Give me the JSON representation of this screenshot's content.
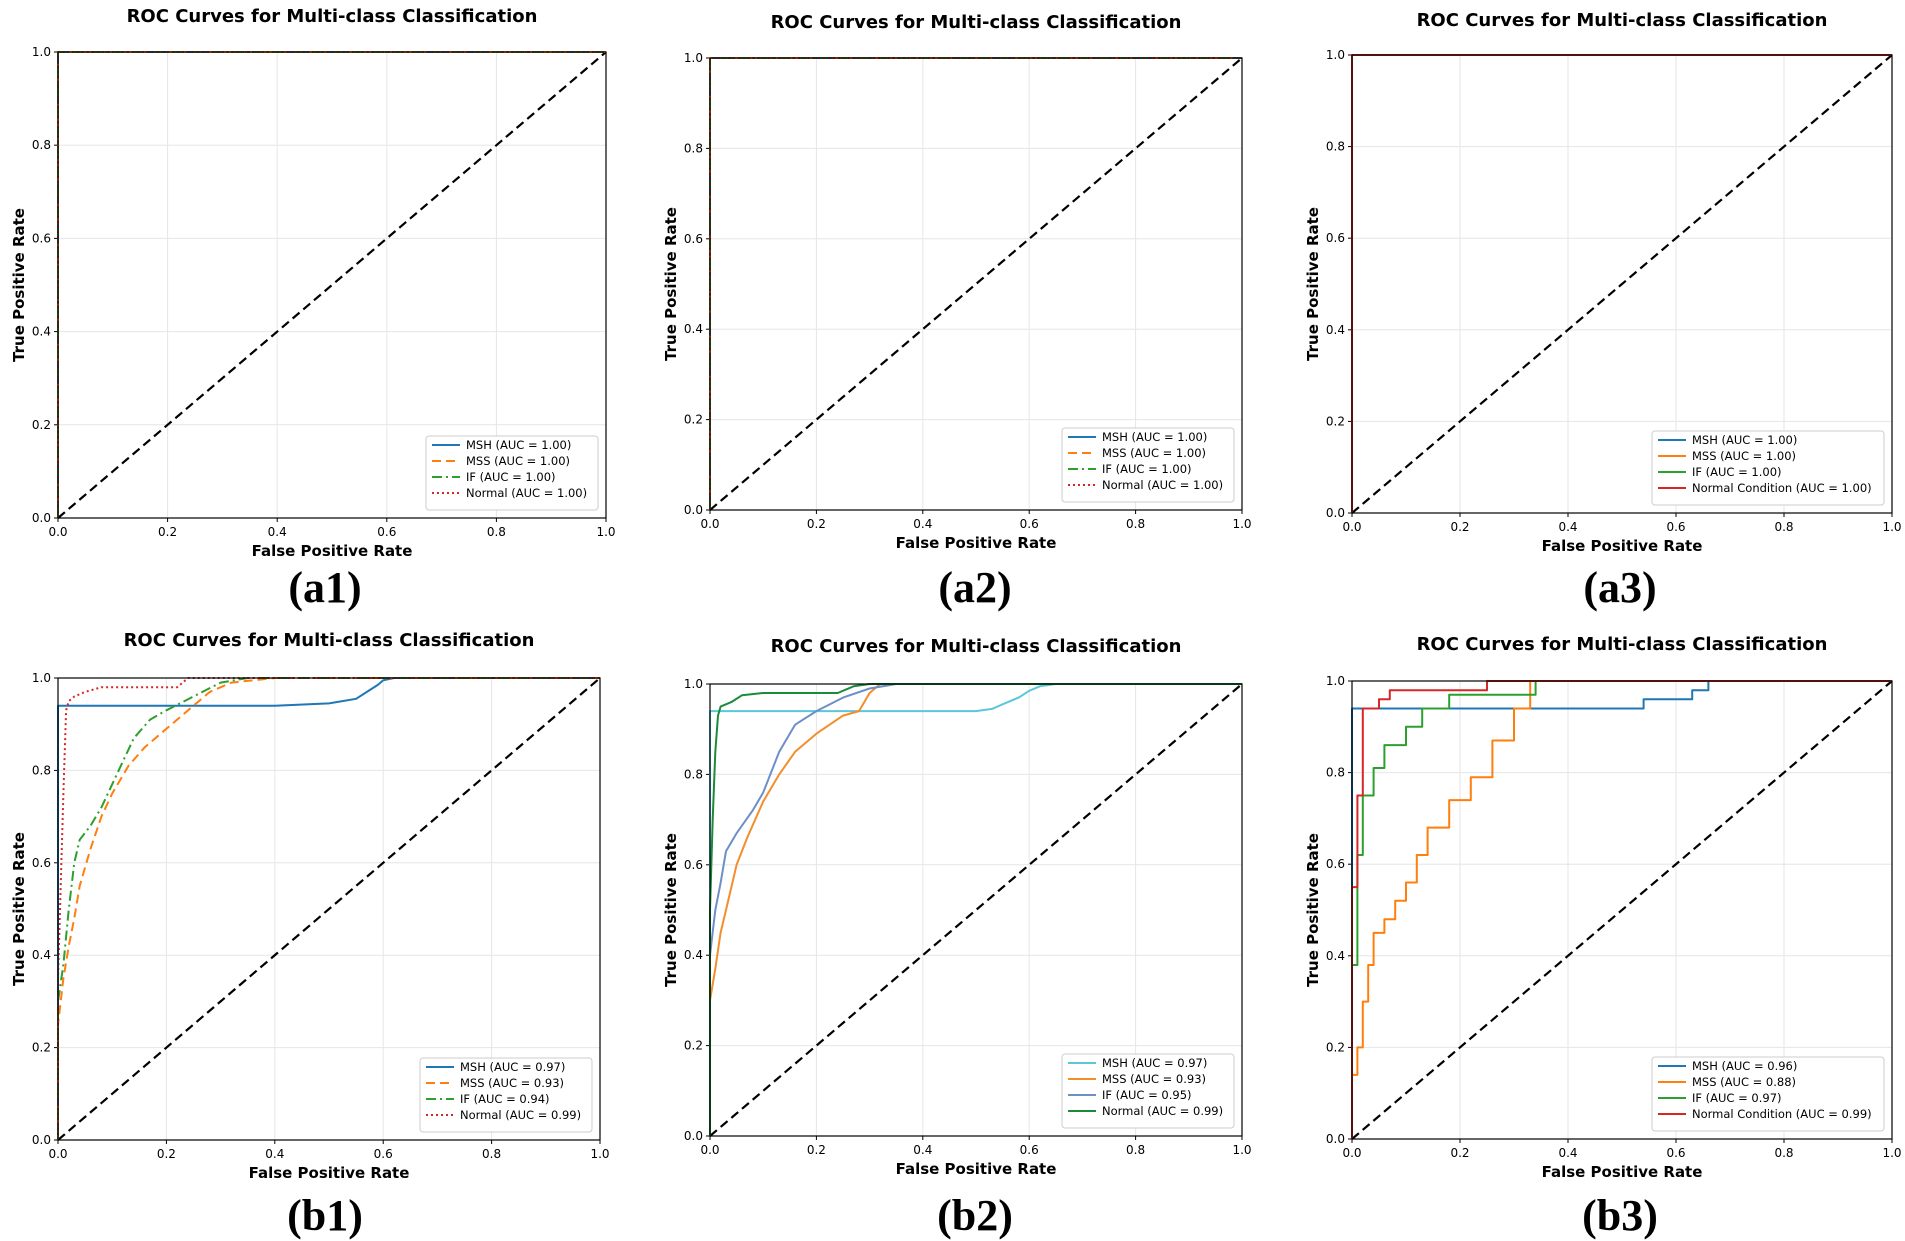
{
  "figure": {
    "panels": [
      {
        "id": "a1",
        "label": "(a1)",
        "title": "ROC Curves for Multi-class Classification",
        "xlabel": "False Positive Rate",
        "ylabel": "True Positive Rate",
        "legend": [
          "MSH (AUC = 1.00)",
          "MSS (AUC = 1.00)",
          "IF (AUC = 1.00)",
          "Normal (AUC = 1.00)"
        ]
      },
      {
        "id": "a2",
        "label": "(a2)",
        "title": "ROC Curves for Multi-class Classification",
        "xlabel": "False Positive Rate",
        "ylabel": "True Positive Rate",
        "legend": [
          "MSH (AUC = 1.00)",
          "MSS (AUC = 1.00)",
          "IF (AUC = 1.00)",
          "Normal (AUC = 1.00)"
        ]
      },
      {
        "id": "a3",
        "label": "(a3)",
        "title": "ROC Curves for Multi-class Classification",
        "xlabel": "False Positive Rate",
        "ylabel": "True Positive Rate",
        "legend": [
          "MSH (AUC = 1.00)",
          "MSS (AUC = 1.00)",
          "IF (AUC = 1.00)",
          "Normal Condition (AUC = 1.00)"
        ]
      },
      {
        "id": "b1",
        "label": "(b1)",
        "title": "ROC Curves for Multi-class Classification",
        "xlabel": "False Positive Rate",
        "ylabel": "True Positive Rate",
        "legend": [
          "MSH (AUC = 0.97)",
          "MSS (AUC = 0.93)",
          "IF (AUC = 0.94)",
          "Normal (AUC = 0.99)"
        ]
      },
      {
        "id": "b2",
        "label": "(b2)",
        "title": "ROC Curves for Multi-class Classification",
        "xlabel": "False Positive Rate",
        "ylabel": "True Positive Rate",
        "legend": [
          "MSH (AUC = 0.97)",
          "MSS (AUC = 0.93)",
          "IF (AUC = 0.95)",
          "Normal (AUC = 0.99)"
        ]
      },
      {
        "id": "b3",
        "label": "(b3)",
        "title": "ROC Curves for Multi-class Classification",
        "xlabel": "False Positive Rate",
        "ylabel": "True Positive Rate",
        "legend": [
          "MSH (AUC = 0.96)",
          "MSS (AUC = 0.88)",
          "IF (AUC = 0.97)",
          "Normal Condition (AUC = 0.99)"
        ]
      }
    ]
  },
  "chart_data": [
    {
      "type": "line",
      "panel": "a1",
      "title": "ROC Curves for Multi-class Classification",
      "xlabel": "False Positive Rate",
      "ylabel": "True Positive Rate",
      "xlim": [
        0,
        1
      ],
      "ylim": [
        0,
        1
      ],
      "xticks": [
        "0.0",
        "0.2",
        "0.4",
        "0.6",
        "0.8",
        "1.0"
      ],
      "yticks": [
        "0.0",
        "0.2",
        "0.4",
        "0.6",
        "0.8",
        "1.0"
      ],
      "grid": true,
      "legend_loc": "lower-right",
      "series": [
        {
          "name": "MSH (AUC = 1.00)",
          "color": "#1f77b4",
          "style": "solid",
          "x": [
            0,
            0,
            1
          ],
          "y": [
            0,
            1,
            1
          ]
        },
        {
          "name": "MSS (AUC = 1.00)",
          "color": "#ff7f0e",
          "style": "dashed",
          "x": [
            0,
            0,
            1
          ],
          "y": [
            0,
            1,
            1
          ]
        },
        {
          "name": "IF (AUC = 1.00)",
          "color": "#2ca02c",
          "style": "dashdot",
          "x": [
            0,
            0,
            1
          ],
          "y": [
            0,
            1,
            1
          ]
        },
        {
          "name": "Normal (AUC = 1.00)",
          "color": "#d62728",
          "style": "dotted",
          "x": [
            0,
            0,
            1
          ],
          "y": [
            0,
            1,
            1
          ]
        },
        {
          "name": "chance",
          "color": "#000000",
          "style": "dashed",
          "x": [
            0,
            1
          ],
          "y": [
            0,
            1
          ]
        }
      ]
    },
    {
      "type": "line",
      "panel": "a2",
      "title": "ROC Curves for Multi-class Classification",
      "xlabel": "False Positive Rate",
      "ylabel": "True Positive Rate",
      "xlim": [
        0,
        1
      ],
      "ylim": [
        0,
        1
      ],
      "xticks": [
        "0.0",
        "0.2",
        "0.4",
        "0.6",
        "0.8",
        "1.0"
      ],
      "yticks": [
        "0.0",
        "0.2",
        "0.4",
        "0.6",
        "0.8",
        "1.0"
      ],
      "grid": true,
      "legend_loc": "lower-right",
      "series": [
        {
          "name": "MSH (AUC = 1.00)",
          "color": "#1f77b4",
          "style": "solid",
          "x": [
            0,
            0,
            1
          ],
          "y": [
            0,
            1,
            1
          ]
        },
        {
          "name": "MSS (AUC = 1.00)",
          "color": "#ff7f0e",
          "style": "dashed",
          "x": [
            0,
            0,
            1
          ],
          "y": [
            0,
            1,
            1
          ]
        },
        {
          "name": "IF (AUC = 1.00)",
          "color": "#2ca02c",
          "style": "dashdot",
          "x": [
            0,
            0,
            1
          ],
          "y": [
            0,
            1,
            1
          ]
        },
        {
          "name": "Normal (AUC = 1.00)",
          "color": "#d62728",
          "style": "dotted",
          "x": [
            0,
            0,
            1
          ],
          "y": [
            0,
            1,
            1
          ]
        },
        {
          "name": "chance",
          "color": "#000000",
          "style": "dashed",
          "x": [
            0,
            1
          ],
          "y": [
            0,
            1
          ]
        }
      ]
    },
    {
      "type": "line",
      "panel": "a3",
      "title": "ROC Curves for Multi-class Classification",
      "xlabel": "False Positive Rate",
      "ylabel": "True Positive Rate",
      "xlim": [
        0,
        1
      ],
      "ylim": [
        0,
        1
      ],
      "xticks": [
        "0.0",
        "0.2",
        "0.4",
        "0.6",
        "0.8",
        "1.0"
      ],
      "yticks": [
        "0.0",
        "0.2",
        "0.4",
        "0.6",
        "0.8",
        "1.0"
      ],
      "grid": true,
      "legend_loc": "lower-right",
      "series": [
        {
          "name": "MSH (AUC = 1.00)",
          "color": "#1f77b4",
          "style": "solid",
          "x": [
            0,
            0,
            1
          ],
          "y": [
            0,
            1,
            1
          ]
        },
        {
          "name": "MSS (AUC = 1.00)",
          "color": "#ff7f0e",
          "style": "solid",
          "x": [
            0,
            0,
            1
          ],
          "y": [
            0,
            1,
            1
          ]
        },
        {
          "name": "IF (AUC = 1.00)",
          "color": "#2ca02c",
          "style": "solid",
          "x": [
            0,
            0,
            1
          ],
          "y": [
            0,
            1,
            1
          ]
        },
        {
          "name": "Normal Condition (AUC = 1.00)",
          "color": "#d62728",
          "style": "solid",
          "x": [
            0,
            0,
            1
          ],
          "y": [
            0,
            1,
            1
          ]
        },
        {
          "name": "chance",
          "color": "#000000",
          "style": "dashed",
          "x": [
            0,
            1
          ],
          "y": [
            0,
            1
          ]
        }
      ]
    },
    {
      "type": "line",
      "panel": "b1",
      "title": "ROC Curves for Multi-class Classification",
      "xlabel": "False Positive Rate",
      "ylabel": "True Positive Rate",
      "xlim": [
        0,
        1
      ],
      "ylim": [
        0,
        1
      ],
      "xticks": [
        "0.0",
        "0.2",
        "0.4",
        "0.6",
        "0.8",
        "1.0"
      ],
      "yticks": [
        "0.0",
        "0.2",
        "0.4",
        "0.6",
        "0.8",
        "1.0"
      ],
      "grid": true,
      "legend_loc": "lower-right",
      "series": [
        {
          "name": "MSH (AUC = 0.97)",
          "color": "#1f77b4",
          "style": "solid",
          "x": [
            0,
            0,
            0.05,
            0.2,
            0.4,
            0.5,
            0.55,
            0.57,
            0.59,
            0.6,
            0.62,
            0.65,
            1
          ],
          "y": [
            0,
            0.94,
            0.94,
            0.94,
            0.94,
            0.945,
            0.955,
            0.97,
            0.985,
            0.995,
            1,
            1,
            1
          ]
        },
        {
          "name": "MSS (AUC = 0.93)",
          "color": "#ff7f0e",
          "style": "dashed",
          "x": [
            0,
            0,
            0.01,
            0.02,
            0.03,
            0.04,
            0.06,
            0.08,
            0.1,
            0.13,
            0.16,
            0.2,
            0.25,
            0.28,
            0.32,
            0.4,
            1
          ],
          "y": [
            0,
            0.25,
            0.35,
            0.42,
            0.48,
            0.55,
            0.63,
            0.7,
            0.75,
            0.81,
            0.85,
            0.89,
            0.94,
            0.97,
            0.99,
            1,
            1
          ]
        },
        {
          "name": "IF (AUC = 0.94)",
          "color": "#2ca02c",
          "style": "dashdot",
          "x": [
            0,
            0,
            0.01,
            0.02,
            0.03,
            0.04,
            0.06,
            0.08,
            0.1,
            0.12,
            0.14,
            0.17,
            0.2,
            0.25,
            0.3,
            0.35,
            1
          ],
          "y": [
            0,
            0.3,
            0.38,
            0.5,
            0.6,
            0.65,
            0.68,
            0.72,
            0.77,
            0.82,
            0.87,
            0.91,
            0.93,
            0.96,
            0.99,
            1,
            1
          ]
        },
        {
          "name": "Normal (AUC = 0.99)",
          "color": "#d62728",
          "style": "dotted",
          "x": [
            0,
            0,
            0.005,
            0.01,
            0.015,
            0.02,
            0.03,
            0.05,
            0.08,
            0.1,
            0.22,
            0.24,
            0.3,
            1
          ],
          "y": [
            0,
            0.35,
            0.55,
            0.75,
            0.93,
            0.95,
            0.96,
            0.97,
            0.98,
            0.98,
            0.98,
            1,
            1,
            1
          ]
        },
        {
          "name": "chance",
          "color": "#000000",
          "style": "dashed",
          "x": [
            0,
            1
          ],
          "y": [
            0,
            1
          ]
        }
      ]
    },
    {
      "type": "line",
      "panel": "b2",
      "title": "ROC Curves for Multi-class Classification",
      "xlabel": "False Positive Rate",
      "ylabel": "True Positive Rate",
      "xlim": [
        0,
        1
      ],
      "ylim": [
        0,
        1
      ],
      "xticks": [
        "0.0",
        "0.2",
        "0.4",
        "0.6",
        "0.8",
        "1.0"
      ],
      "yticks": [
        "0.0",
        "0.2",
        "0.4",
        "0.6",
        "0.8",
        "1.0"
      ],
      "grid": true,
      "legend_loc": "lower-right",
      "series": [
        {
          "name": "MSH (AUC = 0.97)",
          "color": "#5bc8d9",
          "style": "solid",
          "x": [
            0,
            0,
            0.05,
            0.3,
            0.5,
            0.53,
            0.55,
            0.58,
            0.6,
            0.62,
            0.65,
            1
          ],
          "y": [
            0,
            0.94,
            0.94,
            0.94,
            0.94,
            0.945,
            0.955,
            0.97,
            0.985,
            0.995,
            1,
            1
          ]
        },
        {
          "name": "MSS (AUC = 0.93)",
          "color": "#f28e2b",
          "style": "solid",
          "x": [
            0,
            0,
            0.01,
            0.02,
            0.03,
            0.05,
            0.07,
            0.1,
            0.13,
            0.16,
            0.2,
            0.25,
            0.28,
            0.3,
            0.32,
            1
          ],
          "y": [
            0,
            0.3,
            0.37,
            0.45,
            0.5,
            0.6,
            0.66,
            0.74,
            0.8,
            0.85,
            0.89,
            0.93,
            0.94,
            0.98,
            1,
            1
          ]
        },
        {
          "name": "IF (AUC = 0.95)",
          "color": "#6d8fc7",
          "style": "solid",
          "x": [
            0,
            0,
            0.01,
            0.02,
            0.03,
            0.05,
            0.08,
            0.1,
            0.13,
            0.16,
            0.2,
            0.25,
            0.3,
            0.35,
            1
          ],
          "y": [
            0,
            0.4,
            0.5,
            0.56,
            0.63,
            0.67,
            0.72,
            0.76,
            0.85,
            0.91,
            0.94,
            0.97,
            0.99,
            1,
            1
          ]
        },
        {
          "name": "Normal (AUC = 0.99)",
          "color": "#1b8a3a",
          "style": "solid",
          "x": [
            0,
            0,
            0.005,
            0.01,
            0.015,
            0.02,
            0.04,
            0.06,
            0.1,
            0.24,
            0.27,
            0.3,
            1
          ],
          "y": [
            0,
            0.5,
            0.7,
            0.85,
            0.93,
            0.95,
            0.96,
            0.975,
            0.98,
            0.98,
            0.995,
            1,
            1
          ]
        },
        {
          "name": "chance",
          "color": "#000000",
          "style": "dashed",
          "x": [
            0,
            1
          ],
          "y": [
            0,
            1
          ]
        }
      ]
    },
    {
      "type": "line",
      "panel": "b3",
      "title": "ROC Curves for Multi-class Classification",
      "xlabel": "False Positive Rate",
      "ylabel": "True Positive Rate",
      "xlim": [
        0,
        1
      ],
      "ylim": [
        0,
        1
      ],
      "xticks": [
        "0.0",
        "0.2",
        "0.4",
        "0.6",
        "0.8",
        "1.0"
      ],
      "yticks": [
        "0.0",
        "0.2",
        "0.4",
        "0.6",
        "0.8",
        "1.0"
      ],
      "grid": true,
      "legend_loc": "lower-right",
      "series": [
        {
          "name": "MSH (AUC = 0.96)",
          "color": "#1f77b4",
          "style": "solid",
          "x": [
            0,
            0,
            0.54,
            0.54,
            0.63,
            0.63,
            0.66,
            0.66,
            1
          ],
          "y": [
            0,
            0.94,
            0.94,
            0.96,
            0.96,
            0.98,
            0.98,
            1,
            1
          ]
        },
        {
          "name": "MSS (AUC = 0.88)",
          "color": "#ff7f0e",
          "style": "solid",
          "x": [
            0,
            0,
            0.01,
            0.01,
            0.02,
            0.02,
            0.03,
            0.03,
            0.04,
            0.04,
            0.06,
            0.06,
            0.08,
            0.08,
            0.1,
            0.1,
            0.12,
            0.12,
            0.14,
            0.14,
            0.18,
            0.18,
            0.22,
            0.22,
            0.26,
            0.26,
            0.3,
            0.3,
            0.33,
            0.33,
            1
          ],
          "y": [
            0,
            0.14,
            0.14,
            0.2,
            0.2,
            0.3,
            0.3,
            0.38,
            0.38,
            0.45,
            0.45,
            0.48,
            0.48,
            0.52,
            0.52,
            0.56,
            0.56,
            0.62,
            0.62,
            0.68,
            0.68,
            0.74,
            0.74,
            0.79,
            0.79,
            0.87,
            0.87,
            0.94,
            0.94,
            1,
            1
          ]
        },
        {
          "name": "IF (AUC = 0.97)",
          "color": "#2ca02c",
          "style": "solid",
          "x": [
            0,
            0,
            0.01,
            0.01,
            0.02,
            0.02,
            0.04,
            0.04,
            0.06,
            0.06,
            0.1,
            0.1,
            0.13,
            0.13,
            0.18,
            0.18,
            0.34,
            0.34,
            1
          ],
          "y": [
            0,
            0.38,
            0.38,
            0.62,
            0.62,
            0.75,
            0.75,
            0.81,
            0.81,
            0.86,
            0.86,
            0.9,
            0.9,
            0.94,
            0.94,
            0.97,
            0.97,
            1,
            1
          ]
        },
        {
          "name": "Normal Condition (AUC = 0.99)",
          "color": "#d62728",
          "style": "solid",
          "x": [
            0,
            0,
            0.01,
            0.01,
            0.02,
            0.02,
            0.05,
            0.05,
            0.07,
            0.07,
            0.25,
            0.25,
            1
          ],
          "y": [
            0,
            0.55,
            0.55,
            0.75,
            0.75,
            0.94,
            0.94,
            0.96,
            0.96,
            0.98,
            0.98,
            1,
            1
          ]
        },
        {
          "name": "chance",
          "color": "#000000",
          "style": "dashed",
          "x": [
            0,
            1
          ],
          "y": [
            0,
            1
          ]
        }
      ]
    }
  ]
}
